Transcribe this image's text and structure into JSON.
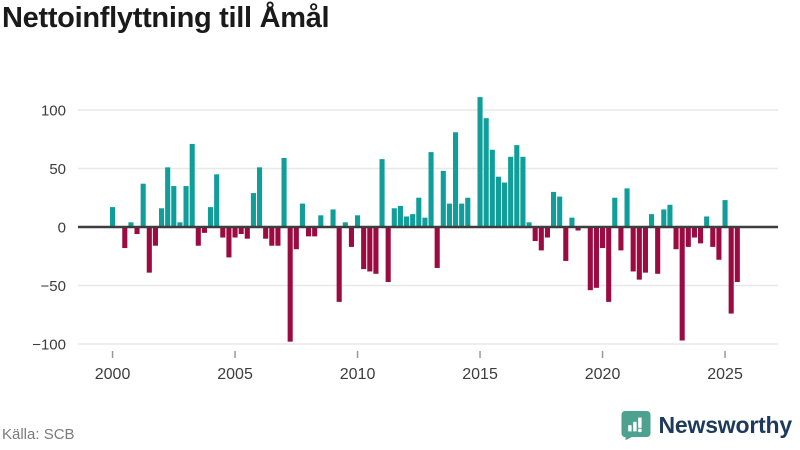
{
  "title": "Nettoinflyttning till Åmål",
  "source": "Källa: SCB",
  "brand": {
    "name": "Newsworthy",
    "icon": "bar-chart-speech-bubble-icon",
    "icon_color": "#4ca28e",
    "text_color": "#1d3a5c"
  },
  "chart_data": {
    "type": "bar",
    "title": "Nettoinflyttning till Åmål",
    "xlabel": "",
    "ylabel": "",
    "frequency": "quarterly",
    "grid": "horizontal",
    "ylim": [
      -115,
      125
    ],
    "positive_color": "#0f9e99",
    "negative_color": "#9b0b41",
    "yticks": [
      {
        "label": "100",
        "value": 100
      },
      {
        "label": "50",
        "value": 50
      },
      {
        "label": "0",
        "value": 0
      },
      {
        "label": "−50",
        "value": -50
      },
      {
        "label": "−100",
        "value": -100
      }
    ],
    "xticks": [
      {
        "label": "2000",
        "year": 2000
      },
      {
        "label": "2005",
        "year": 2005
      },
      {
        "label": "2010",
        "year": 2010
      },
      {
        "label": "2015",
        "year": 2015
      },
      {
        "label": "2020",
        "year": 2020
      },
      {
        "label": "2025",
        "year": 2025
      }
    ],
    "categories": [
      "2000-Q1",
      "2000-Q2",
      "2000-Q3",
      "2000-Q4",
      "2001-Q1",
      "2001-Q2",
      "2001-Q3",
      "2001-Q4",
      "2002-Q1",
      "2002-Q2",
      "2002-Q3",
      "2002-Q4",
      "2003-Q1",
      "2003-Q2",
      "2003-Q3",
      "2003-Q4",
      "2004-Q1",
      "2004-Q2",
      "2004-Q3",
      "2004-Q4",
      "2005-Q1",
      "2005-Q2",
      "2005-Q3",
      "2005-Q4",
      "2006-Q1",
      "2006-Q2",
      "2006-Q3",
      "2006-Q4",
      "2007-Q1",
      "2007-Q2",
      "2007-Q3",
      "2007-Q4",
      "2008-Q1",
      "2008-Q2",
      "2008-Q3",
      "2008-Q4",
      "2009-Q1",
      "2009-Q2",
      "2009-Q3",
      "2009-Q4",
      "2010-Q1",
      "2010-Q2",
      "2010-Q3",
      "2010-Q4",
      "2011-Q1",
      "2011-Q2",
      "2011-Q3",
      "2011-Q4",
      "2012-Q1",
      "2012-Q2",
      "2012-Q3",
      "2012-Q4",
      "2013-Q1",
      "2013-Q2",
      "2013-Q3",
      "2013-Q4",
      "2014-Q1",
      "2014-Q2",
      "2014-Q3",
      "2014-Q4",
      "2015-Q1",
      "2015-Q2",
      "2015-Q3",
      "2015-Q4",
      "2016-Q1",
      "2016-Q2",
      "2016-Q3",
      "2016-Q4",
      "2017-Q1",
      "2017-Q2",
      "2017-Q3",
      "2017-Q4",
      "2018-Q1",
      "2018-Q2",
      "2018-Q3",
      "2018-Q4",
      "2019-Q1",
      "2019-Q2",
      "2019-Q3",
      "2019-Q4",
      "2020-Q1",
      "2020-Q2",
      "2020-Q3",
      "2020-Q4",
      "2021-Q1",
      "2021-Q2",
      "2021-Q3",
      "2021-Q4",
      "2022-Q1",
      "2022-Q2",
      "2022-Q3",
      "2022-Q4",
      "2023-Q1",
      "2023-Q2",
      "2023-Q3",
      "2023-Q4",
      "2024-Q1",
      "2024-Q2",
      "2024-Q3",
      "2024-Q4",
      "2025-Q1",
      "2025-Q2",
      "2025-Q3"
    ],
    "values": [
      17,
      0,
      -18,
      4,
      -6,
      37,
      -39,
      -16,
      16,
      51,
      35,
      4,
      35,
      71,
      -16,
      -5,
      17,
      45,
      -9,
      -26,
      -9,
      -6,
      -10,
      29,
      51,
      -10,
      -16,
      -16,
      59,
      -98,
      -19,
      20,
      -8,
      -8,
      10,
      0,
      15,
      -64,
      4,
      -17,
      10,
      -36,
      -38,
      -40,
      58,
      -47,
      16,
      18,
      9,
      11,
      25,
      8,
      64,
      -35,
      48,
      20,
      81,
      20,
      25,
      0,
      111,
      93,
      66,
      43,
      38,
      60,
      70,
      60,
      4,
      -12,
      -20,
      -9,
      30,
      26,
      -29,
      8,
      -3,
      0,
      -54,
      -52,
      -18,
      -64,
      25,
      -20,
      33,
      -38,
      -45,
      -39,
      11,
      -40,
      15,
      19,
      -19,
      -97,
      -17,
      -9,
      -14,
      9,
      -17,
      -28,
      23,
      -74,
      -47
    ]
  }
}
